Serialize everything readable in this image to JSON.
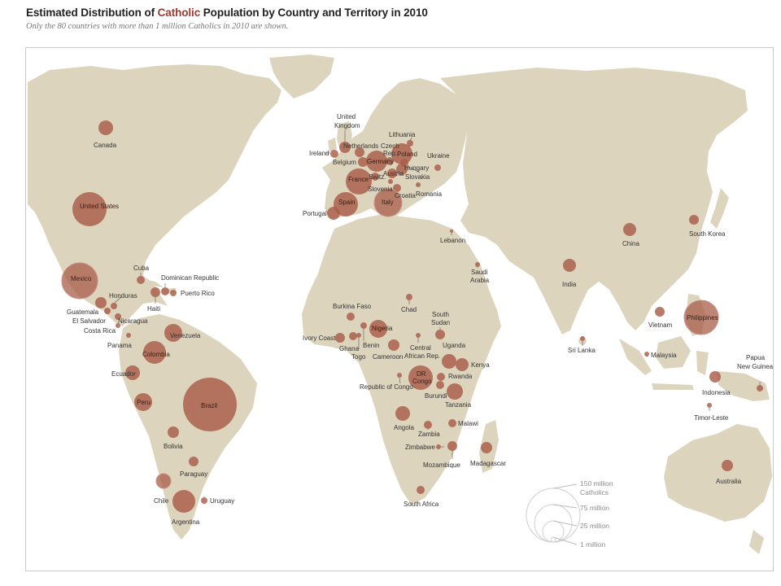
{
  "header": {
    "title_prefix": "Estimated Distribution of ",
    "title_highlight": "Catholic",
    "title_suffix": " Population by Country and Territory in 2010",
    "subtitle": "Only the 80 countries with more than 1 million Catholics in 2010 are shown."
  },
  "colors": {
    "land": "#ddd4be",
    "bubble": "#a85d48",
    "bubble_light": "#c98f86",
    "title_accent": "#a0392e"
  },
  "legend": {
    "labels": [
      "150 million",
      "Catholics",
      "75 million",
      "25 million",
      "1 million"
    ],
    "sizes_millions": [
      150,
      75,
      25,
      1
    ]
  },
  "countries": [
    {
      "name": "Canada"
    },
    {
      "name": "United States"
    },
    {
      "name": "Mexico"
    },
    {
      "name": "Cuba"
    },
    {
      "name": "Dominican Republic"
    },
    {
      "name": "Puerto Rico"
    },
    {
      "name": "Haiti"
    },
    {
      "name": "Honduras"
    },
    {
      "name": "Guatemala"
    },
    {
      "name": "El Salvador"
    },
    {
      "name": "Nicaragua"
    },
    {
      "name": "Costa Rica"
    },
    {
      "name": "Panama"
    },
    {
      "name": "Venezuela"
    },
    {
      "name": "Colombia"
    },
    {
      "name": "Ecuador"
    },
    {
      "name": "Peru"
    },
    {
      "name": "Brazil"
    },
    {
      "name": "Bolivia"
    },
    {
      "name": "Paraguay"
    },
    {
      "name": "Chile"
    },
    {
      "name": "Argentina"
    },
    {
      "name": "Uruguay"
    },
    {
      "name": "United Kingdom"
    },
    {
      "name": "Ireland"
    },
    {
      "name": "Netherlands"
    },
    {
      "name": "Belgium"
    },
    {
      "name": "Germany"
    },
    {
      "name": "France"
    },
    {
      "name": "Switz."
    },
    {
      "name": "Austria"
    },
    {
      "name": "Czech Rep."
    },
    {
      "name": "Poland"
    },
    {
      "name": "Lithuania"
    },
    {
      "name": "Hungary"
    },
    {
      "name": "Slovakia"
    },
    {
      "name": "Slovenia"
    },
    {
      "name": "Croatia"
    },
    {
      "name": "Italy"
    },
    {
      "name": "Spain"
    },
    {
      "name": "Portugal"
    },
    {
      "name": "Ukraine"
    },
    {
      "name": "Romania"
    },
    {
      "name": "Lebanon"
    },
    {
      "name": "Saudi Arabia"
    },
    {
      "name": "India"
    },
    {
      "name": "Sri Lanka"
    },
    {
      "name": "China"
    },
    {
      "name": "South Korea"
    },
    {
      "name": "Philippines"
    },
    {
      "name": "Vietnam"
    },
    {
      "name": "Malaysia"
    },
    {
      "name": "Indonesia"
    },
    {
      "name": "Timor-Leste"
    },
    {
      "name": "Papua New Guinea"
    },
    {
      "name": "Australia"
    },
    {
      "name": "Burkina Faso"
    },
    {
      "name": "Chad"
    },
    {
      "name": "South Sudan"
    },
    {
      "name": "Nigeria"
    },
    {
      "name": "Ivory Coast"
    },
    {
      "name": "Ghana"
    },
    {
      "name": "Togo"
    },
    {
      "name": "Benin"
    },
    {
      "name": "Cameroon"
    },
    {
      "name": "Central African Rep."
    },
    {
      "name": "Uganda"
    },
    {
      "name": "Kenya"
    },
    {
      "name": "Rwanda"
    },
    {
      "name": "Burundi"
    },
    {
      "name": "DR Congo"
    },
    {
      "name": "Republic of Congo"
    },
    {
      "name": "Tanzania"
    },
    {
      "name": "Angola"
    },
    {
      "name": "Zambia"
    },
    {
      "name": "Malawi"
    },
    {
      "name": "Zimbabwe"
    },
    {
      "name": "Mozambique"
    },
    {
      "name": "Madagascar"
    },
    {
      "name": "South Africa"
    }
  ]
}
